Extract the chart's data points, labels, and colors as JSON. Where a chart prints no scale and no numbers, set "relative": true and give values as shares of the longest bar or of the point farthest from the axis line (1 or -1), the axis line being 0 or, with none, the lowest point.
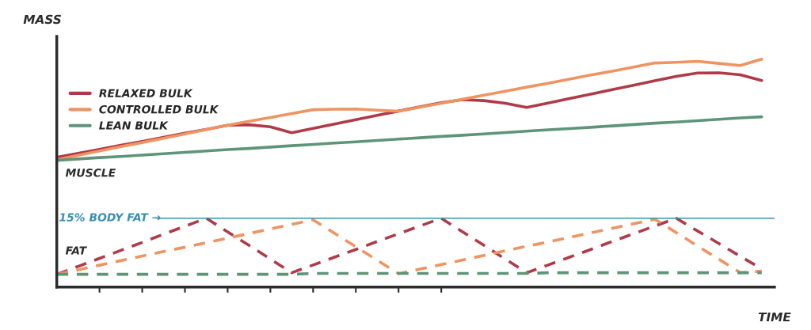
{
  "chart_data": {
    "type": "line",
    "relative": true,
    "xlabel": "TIME",
    "ylabel": "MASS",
    "categories": [
      null,
      null,
      null,
      null,
      null,
      null,
      null,
      null,
      null,
      null,
      null,
      null,
      null,
      null,
      null,
      null,
      null,
      null,
      null,
      null,
      null,
      null,
      null,
      null,
      null,
      null,
      null,
      null,
      null,
      null,
      null,
      null,
      null,
      null
    ],
    "legend": "top left",
    "grid": false,
    "marker": "none",
    "annotations": [
      "MUSCLE",
      "FAT"
    ],
    "ref_lines": [
      {
        "axis": "y",
        "value": 0.302,
        "label": "15% BODY FAT →",
        "color": "#3b8eb5",
        "line_style": "solid"
      }
    ],
    "series": [
      {
        "name": "RELAXED BULK",
        "color": "#b03a48",
        "line_style": "solid",
        "values": [
          0.569,
          0.587,
          0.604,
          0.622,
          0.639,
          0.657,
          0.675,
          0.692,
          0.71,
          0.712,
          0.703,
          0.677,
          0.696,
          0.715,
          0.734,
          0.753,
          0.772,
          0.791,
          0.809,
          0.822,
          0.818,
          0.806,
          0.788,
          0.807,
          0.827,
          0.846,
          0.866,
          0.885,
          0.905,
          0.924,
          0.939,
          0.94,
          0.931,
          0.906
        ]
      },
      {
        "name": "CONTROLLED BULK",
        "color": "#ef9461",
        "line_style": "solid",
        "values": [
          0.559,
          0.578,
          0.597,
          0.616,
          0.634,
          0.653,
          0.672,
          0.691,
          0.71,
          0.727,
          0.744,
          0.761,
          0.778,
          0.78,
          0.781,
          0.776,
          0.771,
          0.789,
          0.806,
          0.824,
          0.842,
          0.859,
          0.877,
          0.894,
          0.912,
          0.93,
          0.947,
          0.965,
          0.983,
          0.986,
          0.99,
          0.981,
          0.972,
          1.0
        ]
      },
      {
        "name": "LEAN BULK",
        "color": "#5e9478",
        "line_style": "solid",
        "values": [
          0.556,
          0.562,
          0.568,
          0.573,
          0.579,
          0.585,
          0.591,
          0.597,
          0.603,
          0.608,
          0.614,
          0.62,
          0.626,
          0.632,
          0.637,
          0.643,
          0.649,
          0.655,
          0.661,
          0.666,
          0.672,
          0.678,
          0.684,
          0.69,
          0.695,
          0.701,
          0.707,
          0.713,
          0.719,
          0.724,
          0.73,
          0.736,
          0.742,
          0.747
        ]
      },
      {
        "color": "#b03a48",
        "line_style": "dashed",
        "values": [
          0.056,
          0.091,
          0.126,
          0.161,
          0.196,
          0.232,
          0.267,
          0.302,
          0.242,
          0.183,
          0.123,
          0.063,
          0.097,
          0.131,
          0.165,
          0.2,
          0.234,
          0.268,
          0.302,
          0.242,
          0.183,
          0.123,
          0.063,
          0.097,
          0.131,
          0.165,
          0.2,
          0.234,
          0.268,
          0.302,
          0.246,
          0.191,
          0.135,
          0.08
        ]
      },
      {
        "color": "#ef9461",
        "line_style": "dashed",
        "values": [
          0.056,
          0.076,
          0.096,
          0.116,
          0.136,
          0.156,
          0.175,
          0.195,
          0.215,
          0.235,
          0.255,
          0.275,
          0.295,
          0.236,
          0.177,
          0.118,
          0.059,
          0.079,
          0.099,
          0.119,
          0.139,
          0.159,
          0.179,
          0.198,
          0.218,
          0.238,
          0.258,
          0.278,
          0.298,
          0.239,
          0.18,
          0.122,
          0.063,
          0.07
        ]
      },
      {
        "color": "#5e9478",
        "line_style": "dashed",
        "values": [
          0.056,
          0.056,
          0.056,
          0.056,
          0.056,
          0.056,
          0.056,
          0.056,
          0.056,
          0.056,
          0.056,
          0.056,
          0.06,
          0.06,
          0.06,
          0.06,
          0.06,
          0.06,
          0.06,
          0.06,
          0.06,
          0.06,
          0.06,
          0.063,
          0.063,
          0.063,
          0.063,
          0.063,
          0.063,
          0.063,
          0.063,
          0.063,
          0.063,
          0.063
        ]
      }
    ]
  }
}
